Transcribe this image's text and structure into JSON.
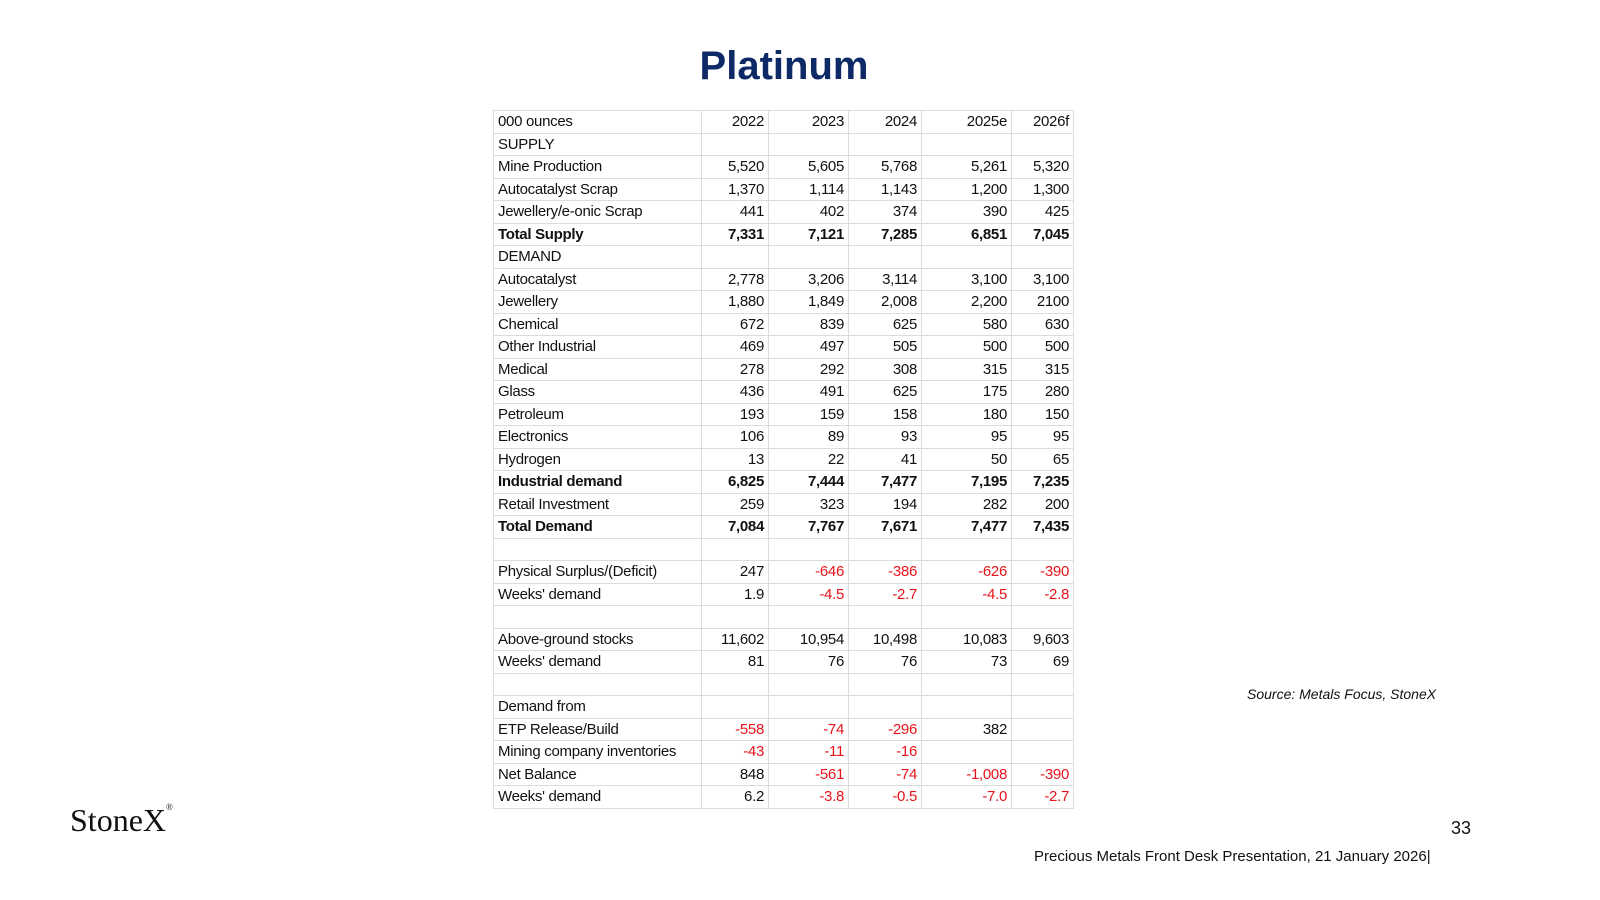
{
  "header": {
    "title": "Platinum"
  },
  "table": {
    "header": [
      "000 ounces",
      "2022",
      "2023",
      "2024",
      "2025e",
      "2026f"
    ],
    "rows": [
      {
        "cells": [
          "SUPPLY",
          null,
          null,
          null,
          null,
          null
        ]
      },
      {
        "cells": [
          "Mine Production",
          "5,520",
          "5,605",
          "5,768",
          "5,261",
          "5,320"
        ]
      },
      {
        "cells": [
          "Autocatalyst Scrap",
          "1,370",
          "1,114",
          "1,143",
          "1,200",
          "1,300"
        ]
      },
      {
        "cells": [
          "Jewellery/e-onic Scrap",
          "441",
          "402",
          "374",
          "390",
          "425"
        ]
      },
      {
        "cells": [
          "Total Supply",
          "7,331",
          "7,121",
          "7,285",
          "6,851",
          "7,045"
        ],
        "bold": true
      },
      {
        "cells": [
          "DEMAND",
          null,
          null,
          null,
          null,
          null
        ]
      },
      {
        "cells": [
          "Autocatalyst",
          "2,778",
          "3,206",
          "3,114",
          "3,100",
          "3,100"
        ]
      },
      {
        "cells": [
          "Jewellery",
          "1,880",
          "1,849",
          "2,008",
          "2,200",
          "2100"
        ]
      },
      {
        "cells": [
          "Chemical",
          "672",
          "839",
          "625",
          "580",
          "630"
        ]
      },
      {
        "cells": [
          "Other Industrial",
          "469",
          "497",
          "505",
          "500",
          "500"
        ]
      },
      {
        "cells": [
          "Medical",
          "278",
          "292",
          "308",
          "315",
          "315"
        ]
      },
      {
        "cells": [
          "Glass",
          "436",
          "491",
          "625",
          "175",
          "280"
        ]
      },
      {
        "cells": [
          "Petroleum",
          "193",
          "159",
          "158",
          "180",
          "150"
        ]
      },
      {
        "cells": [
          "Electronics",
          "106",
          "89",
          "93",
          "95",
          "95"
        ]
      },
      {
        "cells": [
          "Hydrogen",
          "13",
          "22",
          "41",
          "50",
          "65"
        ]
      },
      {
        "cells": [
          "Industrial demand",
          "6,825",
          "7,444",
          "7,477",
          "7,195",
          "7,235"
        ],
        "bold": true
      },
      {
        "cells": [
          "Retail Investment",
          "259",
          "323",
          "194",
          "282",
          "200"
        ]
      },
      {
        "cells": [
          "Total Demand",
          "7,084",
          "7,767",
          "7,671",
          "7,477",
          "7,435"
        ],
        "bold": true
      },
      {
        "cells": [
          null,
          null,
          null,
          null,
          null,
          null
        ]
      },
      {
        "cells": [
          "Physical Surplus/(Deficit)",
          "247",
          "-646",
          "-386",
          "-626",
          "-390"
        ]
      },
      {
        "cells": [
          "Weeks' demand",
          "1.9",
          "-4.5",
          "-2.7",
          "-4.5",
          "-2.8"
        ]
      },
      {
        "cells": [
          null,
          null,
          null,
          null,
          null,
          null
        ]
      },
      {
        "cells": [
          "Above-ground stocks",
          "11,602",
          "10,954",
          "10,498",
          "10,083",
          "9,603"
        ]
      },
      {
        "cells": [
          "Weeks' demand",
          "81",
          "76",
          "76",
          "73",
          "69"
        ]
      },
      {
        "cells": [
          null,
          null,
          null,
          null,
          null,
          null
        ]
      },
      {
        "cells": [
          "Demand from",
          null,
          null,
          null,
          null,
          null
        ]
      },
      {
        "cells": [
          "ETP Release/Build",
          "-558",
          "-74",
          "-296",
          "382",
          null
        ]
      },
      {
        "cells": [
          "Mining company inventories",
          "-43",
          "-11",
          "-16",
          null,
          null
        ]
      },
      {
        "cells": [
          "Net Balance",
          "848",
          "-561",
          "-74",
          "-1,008",
          "-390"
        ]
      },
      {
        "cells": [
          "Weeks' demand",
          "6.2",
          "-3.8",
          "-0.5",
          "-7.0",
          "-2.7"
        ]
      }
    ]
  },
  "source": "Source: Metals Focus, StoneX",
  "logo": {
    "name": "StoneX",
    "mark": "®"
  },
  "page_number": "33",
  "footer": "Precious Metals Front Desk Presentation, 21 January 2026|"
}
